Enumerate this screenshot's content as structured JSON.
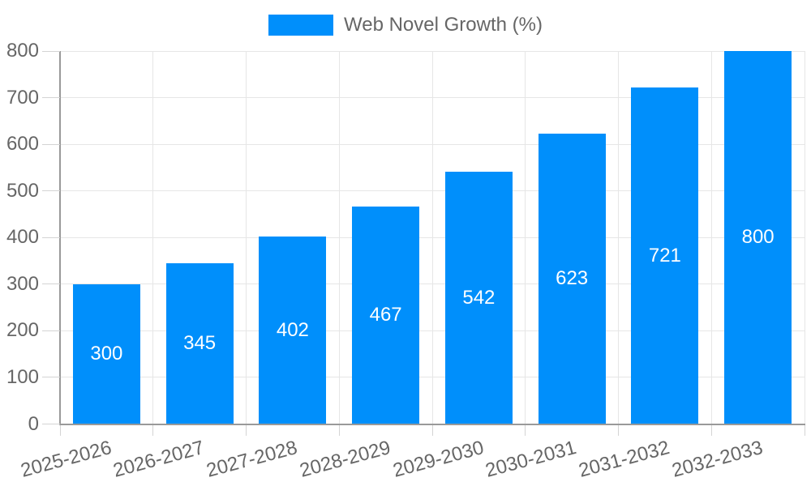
{
  "legend": {
    "label": "Web Novel Growth (%)"
  },
  "chart_data": {
    "type": "bar",
    "title": "",
    "categories": [
      "2025-2026",
      "2026-2027",
      "2027-2028",
      "2028-2029",
      "2029-2030",
      "2030-2031",
      "2031-2032",
      "2032-2033"
    ],
    "series": [
      {
        "name": "Web Novel Growth (%)",
        "values": [
          300,
          345,
          402,
          467,
          542,
          623,
          721,
          800
        ]
      }
    ],
    "xlabel": "",
    "ylabel": "",
    "ylim": [
      0,
      800
    ],
    "yticks": [
      0,
      100,
      200,
      300,
      400,
      500,
      600,
      700,
      800
    ],
    "grid": true,
    "legend_position": "top",
    "value_label_position": "inside-center",
    "x_label_rotation_deg": -15,
    "colors": {
      "bar": "#008ffb",
      "value_label": "#ffffff",
      "axis_label": "#666666",
      "legend_text": "#666666",
      "axis_line": "#999999",
      "gridline": "#e6e6e6",
      "tick": "#d4d4d4",
      "background": "#ffffff"
    }
  }
}
